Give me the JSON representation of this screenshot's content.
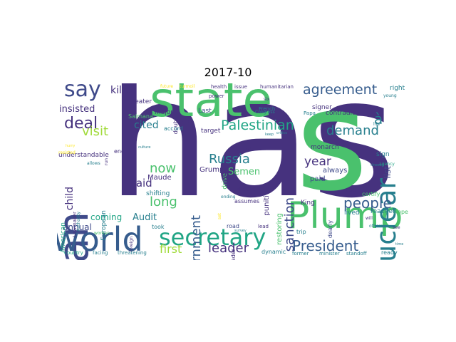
{
  "title": "2017-10",
  "colors": {
    "dark_purple": "#46327e",
    "indigo": "#3f4a8a",
    "blue": "#365c8d",
    "teal": "#277f8e",
    "green": "#21a585",
    "light_green": "#4ac16d",
    "lime": "#a0da39",
    "yellow": "#fde725"
  },
  "words": [
    {
      "text": "has",
      "color": "dark_purple"
    },
    {
      "text": "state",
      "color": "light_green"
    },
    {
      "text": "s",
      "color": "light_green"
    },
    {
      "text": "Plump",
      "color": "light_green"
    },
    {
      "text": "Ran",
      "color": "indigo"
    },
    {
      "text": "world",
      "color": "blue"
    },
    {
      "text": "secretary",
      "color": "green"
    },
    {
      "text": "nuclear",
      "color": "teal"
    },
    {
      "text": "say",
      "color": "indigo"
    },
    {
      "text": "agreement",
      "color": "blue"
    },
    {
      "text": "deal",
      "color": "dark_purple"
    },
    {
      "text": "people",
      "color": "blue"
    },
    {
      "text": "President",
      "color": "blue"
    },
    {
      "text": "Palestinian",
      "color": "green"
    },
    {
      "text": "government",
      "color": "blue"
    },
    {
      "text": "sanction",
      "color": "indigo"
    },
    {
      "text": "demand",
      "color": "teal"
    },
    {
      "text": "Russia",
      "color": "teal"
    },
    {
      "text": "now",
      "color": "light_green"
    },
    {
      "text": "long",
      "color": "light_green"
    },
    {
      "text": "visit",
      "color": "lime"
    },
    {
      "text": "said",
      "color": "dark_purple"
    },
    {
      "text": "leader",
      "color": "dark_purple"
    },
    {
      "text": "first",
      "color": "lime"
    },
    {
      "text": "year",
      "color": "dark_purple"
    },
    {
      "text": "killed",
      "color": "dark_purple"
    },
    {
      "text": "insisted",
      "color": "dark_purple"
    },
    {
      "text": "cited",
      "color": "teal"
    },
    {
      "text": "Audit",
      "color": "teal"
    },
    {
      "text": "coming",
      "color": "green"
    },
    {
      "text": "annual",
      "color": "indigo"
    },
    {
      "text": "child",
      "color": "dark_purple"
    },
    {
      "text": "Semen",
      "color": "light_green"
    },
    {
      "text": "list",
      "color": "indigo"
    },
    {
      "text": "à",
      "color": "teal"
    },
    {
      "text": "always",
      "color": "indigo"
    },
    {
      "text": "Maude",
      "color": "dark_purple"
    },
    {
      "text": "Grumpy",
      "color": "dark_purple"
    },
    {
      "text": "shifting",
      "color": "teal"
    },
    {
      "text": "paid",
      "color": "indigo"
    },
    {
      "text": "certify",
      "color": "light_green"
    },
    {
      "text": "reached",
      "color": "teal"
    },
    {
      "text": "hope",
      "color": "light_green"
    },
    {
      "text": "lived",
      "color": "teal"
    },
    {
      "text": "contradict",
      "color": "dark_purple"
    },
    {
      "text": "right",
      "color": "teal"
    },
    {
      "text": "signer",
      "color": "dark_purple"
    },
    {
      "text": "Papa",
      "color": "teal"
    },
    {
      "text": "monarch",
      "color": "dark_purple"
    },
    {
      "text": "King",
      "color": "dark_purple"
    },
    {
      "text": "restoring",
      "color": "light_green"
    },
    {
      "text": "punitive",
      "color": "dark_purple"
    },
    {
      "text": "drive",
      "color": "light_green"
    },
    {
      "text": "ban",
      "color": "dark_purple"
    },
    {
      "text": "Middle",
      "color": "dark_purple"
    },
    {
      "text": "assumes",
      "color": "dark_purple"
    },
    {
      "text": "target",
      "color": "dark_purple"
    },
    {
      "text": "role",
      "color": "dark_purple"
    },
    {
      "text": "doubt",
      "color": "dark_purple"
    },
    {
      "text": "Last",
      "color": "indigo"
    },
    {
      "text": "major",
      "color": "dark_purple"
    },
    {
      "text": "greater",
      "color": "dark_purple"
    },
    {
      "text": "end",
      "color": "dark_purple"
    },
    {
      "text": "ready",
      "color": "teal"
    },
    {
      "text": "dearly",
      "color": "indigo"
    },
    {
      "text": "trip",
      "color": "teal"
    },
    {
      "text": "dynamic",
      "color": "teal"
    },
    {
      "text": "leader",
      "color": "dark_purple"
    },
    {
      "text": "country",
      "color": "green"
    },
    {
      "text": "facing",
      "color": "teal"
    },
    {
      "text": "threatening",
      "color": "teal"
    },
    {
      "text": "former",
      "color": "teal"
    },
    {
      "text": "minister",
      "color": "teal"
    },
    {
      "text": "standoff",
      "color": "teal"
    },
    {
      "text": "took",
      "color": "teal"
    },
    {
      "text": "road",
      "color": "indigo"
    },
    {
      "text": "lead",
      "color": "dark_purple"
    },
    {
      "text": "health",
      "color": "dark_purple"
    },
    {
      "text": "issue",
      "color": "dark_purple"
    },
    {
      "text": "humanitarian",
      "color": "dark_purple"
    },
    {
      "text": "power",
      "color": "dark_purple"
    },
    {
      "text": "future",
      "color": "yellow"
    },
    {
      "text": "turmoil",
      "color": "yellow"
    },
    {
      "text": "accord",
      "color": "teal"
    },
    {
      "text": "Salmana",
      "color": "light_green"
    },
    {
      "text": "French",
      "color": "teal"
    },
    {
      "text": "Congress",
      "color": "teal"
    },
    {
      "text": "ire",
      "color": "dark_purple"
    },
    {
      "text": "sign",
      "color": "teal"
    },
    {
      "text": "agency",
      "color": "green"
    },
    {
      "text": "abide",
      "color": "dark_purple"
    },
    {
      "text": "understandable",
      "color": "dark_purple"
    },
    {
      "text": "allows",
      "color": "teal"
    },
    {
      "text": "European",
      "color": "teal"
    },
    {
      "text": "American",
      "color": "green"
    },
    {
      "text": "Lawmaker",
      "color": "dark_purple"
    },
    {
      "text": "Authority",
      "color": "teal"
    },
    {
      "text": "run",
      "color": "dark_purple"
    },
    {
      "text": "woman",
      "color": "light_green"
    },
    {
      "text": "foreign",
      "color": "dark_purple"
    },
    {
      "text": "ending",
      "color": "teal"
    },
    {
      "text": "see",
      "color": "dark_purple"
    },
    {
      "text": "time",
      "color": "teal"
    },
    {
      "text": "will",
      "color": "dark_purple"
    },
    {
      "text": "others",
      "color": "teal"
    },
    {
      "text": "young",
      "color": "teal"
    },
    {
      "text": "life",
      "color": "teal"
    },
    {
      "text": "Unesco",
      "color": "teal"
    },
    {
      "text": "set",
      "color": "yellow"
    },
    {
      "text": "keep",
      "color": "teal"
    },
    {
      "text": "critics",
      "color": "teal"
    },
    {
      "text": "six",
      "color": "dark_purple"
    },
    {
      "text": "leaf",
      "color": "dark_purple"
    },
    {
      "text": "survey",
      "color": "teal"
    },
    {
      "text": "culture",
      "color": "teal"
    },
    {
      "text": "resisted",
      "color": "yellow"
    },
    {
      "text": "hurry",
      "color": "yellow"
    }
  ]
}
